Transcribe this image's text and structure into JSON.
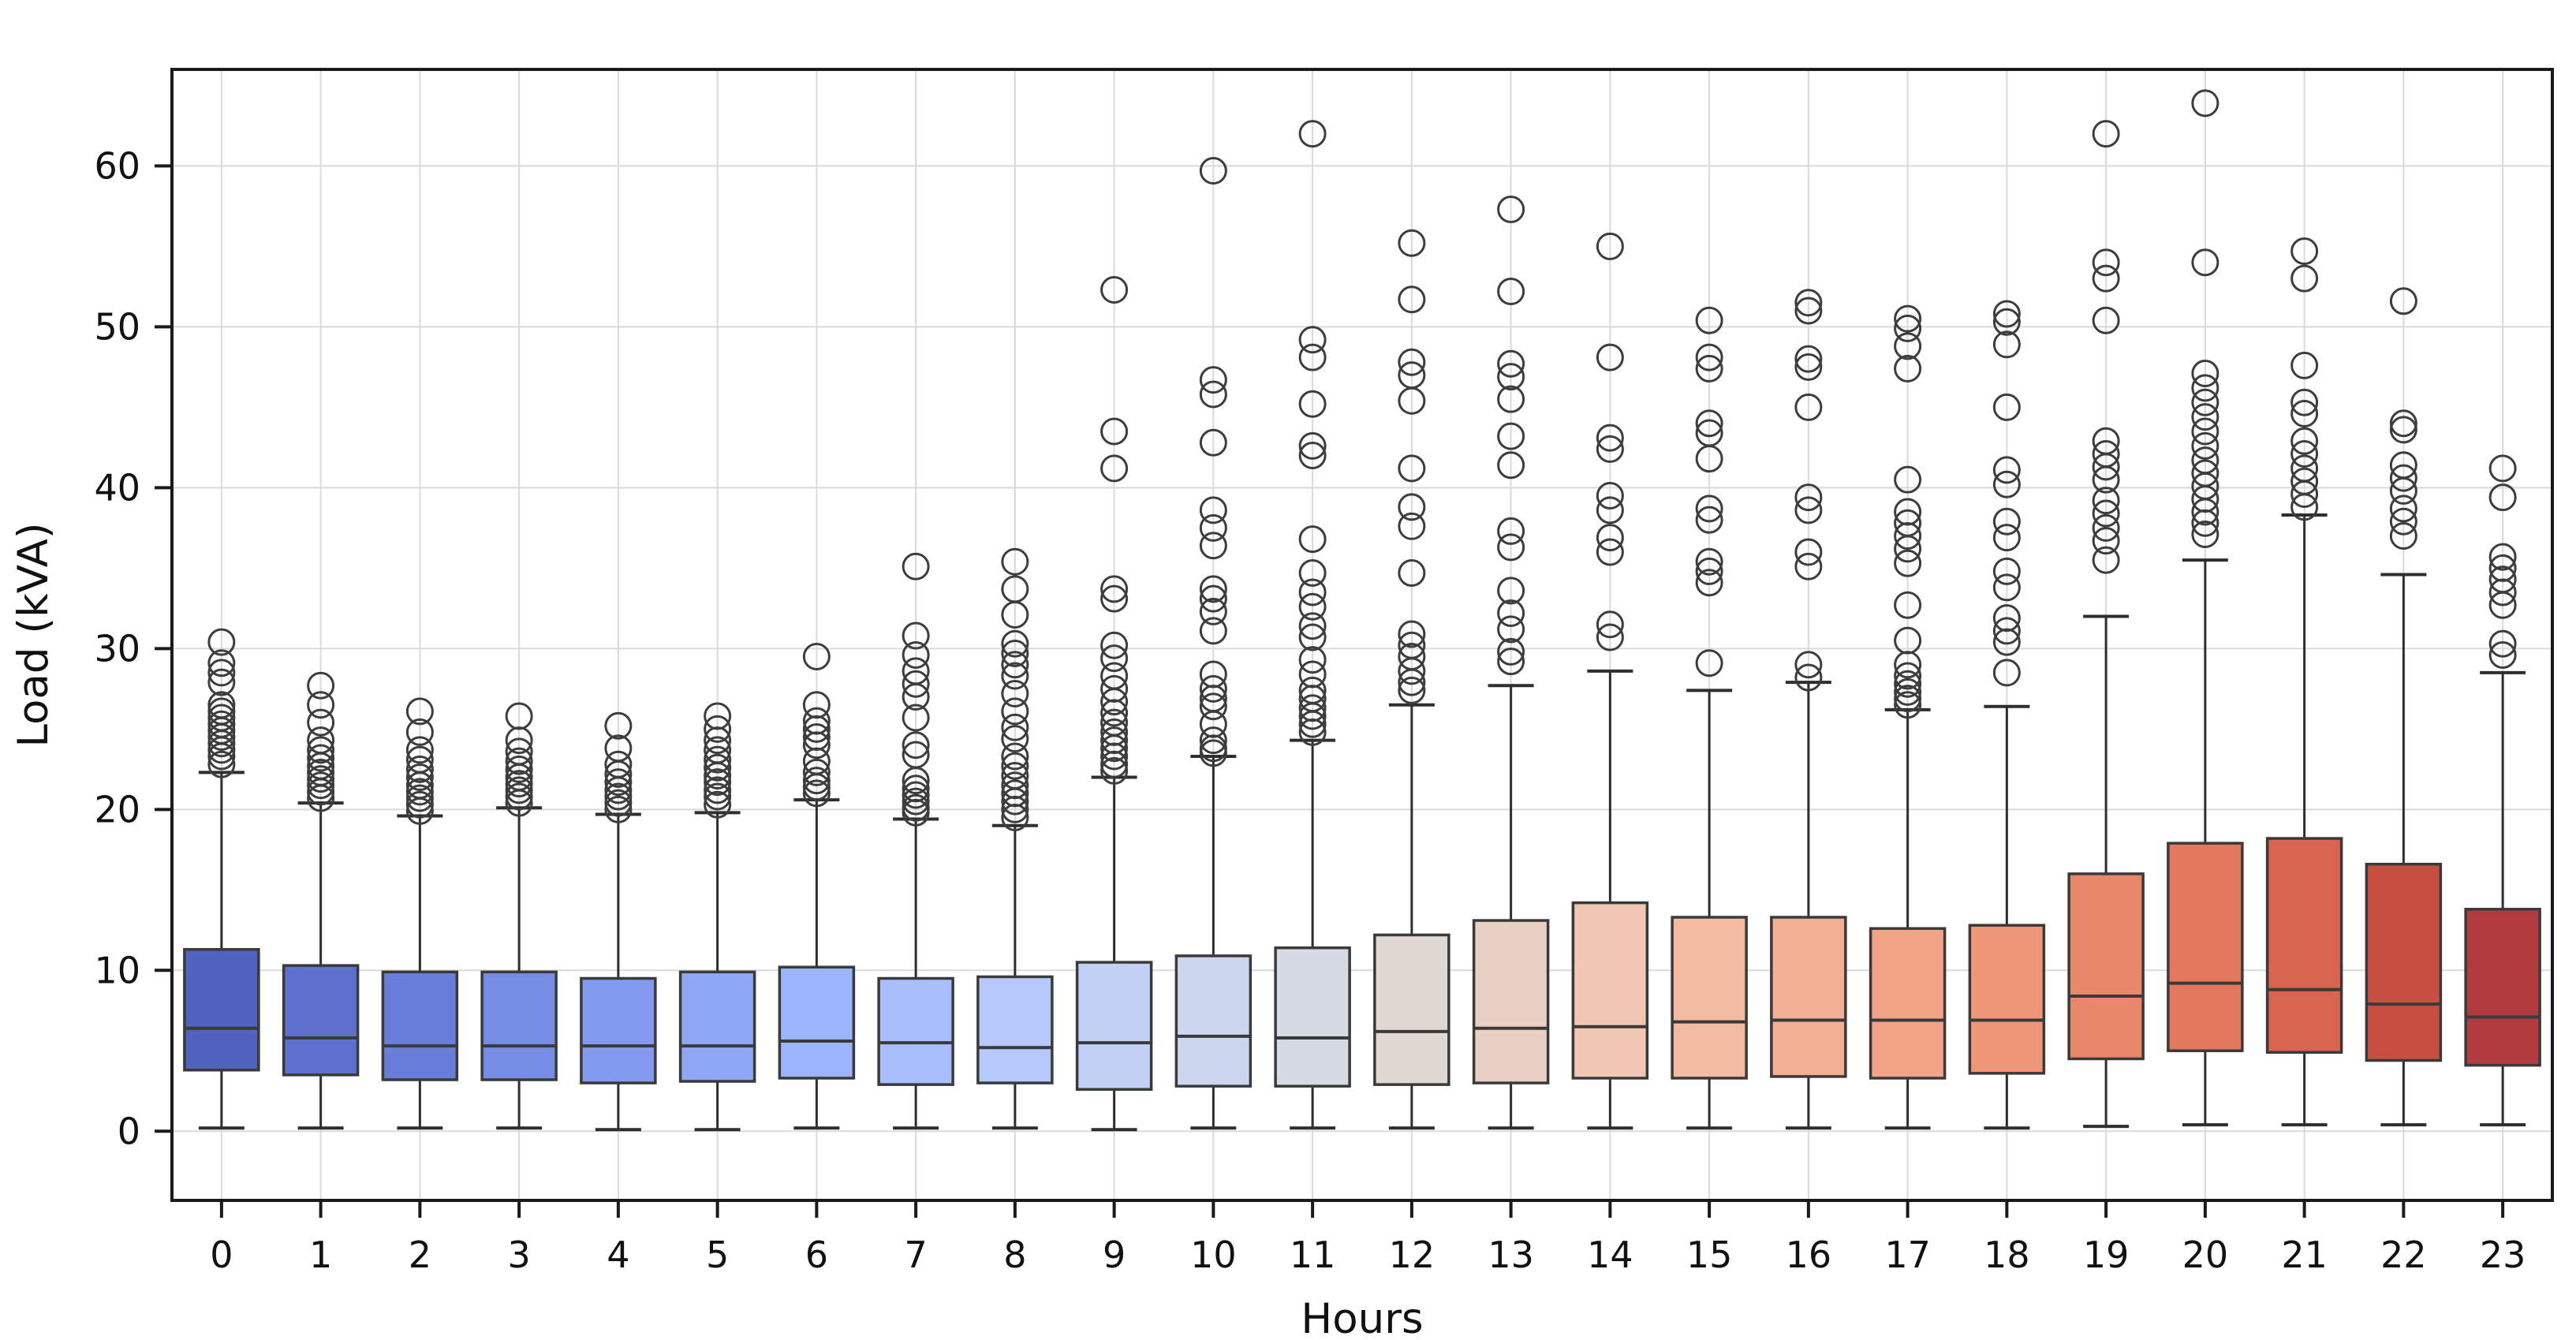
{
  "figure": {
    "background": "#ffffff",
    "plot_border_color": "#1a1a1a",
    "grid_color": "#dadada",
    "box_edge_color": "#3a3a3a",
    "whisker_color": "#2e2e2e",
    "flier_edge_color": "#3d3d3d"
  },
  "chart_data": {
    "type": "box",
    "title": "",
    "xlabel": "Hours",
    "ylabel": "Load (kVA)",
    "categories": [
      "0",
      "1",
      "2",
      "3",
      "4",
      "5",
      "6",
      "7",
      "8",
      "9",
      "10",
      "11",
      "12",
      "13",
      "14",
      "15",
      "16",
      "17",
      "18",
      "19",
      "20",
      "21",
      "22",
      "23"
    ],
    "yticks": [
      0,
      10,
      20,
      30,
      40,
      50,
      60
    ],
    "ylim": [
      -4.3,
      66
    ],
    "grid": true,
    "legend": false,
    "flier_style": {
      "shape": "circle",
      "fill": "none",
      "edge": "#3d3d3d"
    },
    "series": [
      {
        "hour": "0",
        "color": "#5061BE",
        "whisker_low": 0.2,
        "q1": 3.8,
        "median": 6.4,
        "q3": 11.3,
        "whisker_high": 22.3,
        "outliers": [
          22.8,
          23.3,
          23.7,
          24.1,
          24.5,
          24.9,
          25.3,
          25.7,
          26.1,
          26.5,
          27.9,
          28.5,
          29.1,
          30.4
        ]
      },
      {
        "hour": "1",
        "color": "#5C70CC",
        "whisker_low": 0.2,
        "q1": 3.5,
        "median": 5.8,
        "q3": 10.3,
        "whisker_high": 20.4,
        "outliers": [
          20.7,
          21.1,
          21.5,
          21.9,
          22.3,
          22.7,
          23.2,
          23.7,
          24.3,
          25.4,
          26.5,
          27.7
        ]
      },
      {
        "hour": "2",
        "color": "#687ED9",
        "whisker_low": 0.2,
        "q1": 3.2,
        "median": 5.3,
        "q3": 9.9,
        "whisker_high": 19.6,
        "outliers": [
          19.9,
          20.3,
          20.7,
          21.1,
          21.5,
          22.0,
          22.5,
          23.1,
          23.7,
          24.8,
          26.1
        ]
      },
      {
        "hour": "3",
        "color": "#758DE5",
        "whisker_low": 0.2,
        "q1": 3.2,
        "median": 5.3,
        "q3": 9.9,
        "whisker_high": 20.1,
        "outliers": [
          20.4,
          20.8,
          21.2,
          21.6,
          22.0,
          22.5,
          23.0,
          23.6,
          24.3,
          25.8
        ]
      },
      {
        "hour": "4",
        "color": "#829BEF",
        "whisker_low": 0.1,
        "q1": 3.0,
        "median": 5.3,
        "q3": 9.5,
        "whisker_high": 19.7,
        "outliers": [
          20.0,
          20.4,
          20.8,
          21.2,
          21.7,
          22.2,
          22.8,
          23.8,
          25.2
        ]
      },
      {
        "hour": "5",
        "color": "#8FA8F6",
        "whisker_low": 0.1,
        "q1": 3.1,
        "median": 5.3,
        "q3": 9.9,
        "whisker_high": 19.8,
        "outliers": [
          20.3,
          20.8,
          21.2,
          21.7,
          22.1,
          22.6,
          23.1,
          23.7,
          24.3,
          25.0,
          25.8
        ]
      },
      {
        "hour": "6",
        "color": "#9CB4FB",
        "whisker_low": 0.2,
        "q1": 3.3,
        "median": 5.6,
        "q3": 10.2,
        "whisker_high": 20.6,
        "outliers": [
          21.0,
          21.4,
          21.8,
          22.3,
          23.0,
          24.0,
          24.5,
          25.0,
          25.5,
          26.5,
          29.5
        ]
      },
      {
        "hour": "7",
        "color": "#A9BFFD",
        "whisker_low": 0.2,
        "q1": 2.9,
        "median": 5.5,
        "q3": 9.5,
        "whisker_high": 19.4,
        "outliers": [
          19.8,
          20.1,
          20.5,
          20.9,
          21.3,
          21.8,
          23.4,
          24.0,
          25.7,
          27.0,
          27.8,
          28.6,
          29.6,
          30.8,
          35.1
        ]
      },
      {
        "hour": "8",
        "color": "#B5C9FB",
        "whisker_low": 0.2,
        "q1": 3.0,
        "median": 5.2,
        "q3": 9.6,
        "whisker_high": 19.0,
        "outliers": [
          19.5,
          20.0,
          20.5,
          21.0,
          21.5,
          22.1,
          22.7,
          23.3,
          24.4,
          25.1,
          26.1,
          27.2,
          28.3,
          29.0,
          29.7,
          30.3,
          32.1,
          33.7,
          35.4
        ]
      },
      {
        "hour": "9",
        "color": "#C1D1F6",
        "whisker_low": 0.1,
        "q1": 2.6,
        "median": 5.5,
        "q3": 10.5,
        "whisker_high": 22.0,
        "outliers": [
          22.4,
          22.8,
          23.3,
          23.8,
          24.3,
          24.8,
          25.4,
          26.0,
          26.7,
          27.5,
          28.3,
          29.4,
          30.2,
          33.1,
          33.7,
          41.2,
          43.5,
          52.3
        ]
      },
      {
        "hour": "10",
        "color": "#CCD7EE",
        "whisker_low": 0.2,
        "q1": 2.8,
        "median": 5.9,
        "q3": 10.9,
        "whisker_high": 23.3,
        "outliers": [
          23.5,
          23.8,
          24.3,
          25.3,
          26.4,
          26.9,
          27.5,
          28.4,
          31.1,
          32.3,
          33.1,
          33.7,
          36.4,
          37.5,
          38.6,
          42.8,
          45.8,
          46.7,
          59.7
        ]
      },
      {
        "hour": "11",
        "color": "#D6DAE4",
        "whisker_low": 0.2,
        "q1": 2.8,
        "median": 5.8,
        "q3": 11.4,
        "whisker_high": 24.3,
        "outliers": [
          24.8,
          25.3,
          25.8,
          26.3,
          26.9,
          27.4,
          28.4,
          29.3,
          30.7,
          31.4,
          32.6,
          33.5,
          34.7,
          36.8,
          42.0,
          42.6,
          45.2,
          48.1,
          49.2,
          62.0
        ]
      },
      {
        "hour": "12",
        "color": "#E1D8D1",
        "whisker_low": 0.2,
        "q1": 2.9,
        "median": 6.2,
        "q3": 12.2,
        "whisker_high": 26.5,
        "outliers": [
          27.4,
          27.9,
          28.6,
          29.5,
          30.2,
          30.9,
          34.7,
          37.6,
          38.8,
          41.2,
          45.4,
          47.0,
          47.8,
          51.7,
          55.2
        ]
      },
      {
        "hour": "13",
        "color": "#E9D0C2",
        "whisker_low": 0.2,
        "q1": 3.0,
        "median": 6.4,
        "q3": 13.1,
        "whisker_high": 27.7,
        "outliers": [
          29.2,
          29.8,
          31.2,
          32.2,
          33.6,
          36.3,
          37.3,
          41.4,
          43.2,
          45.5,
          46.9,
          47.7,
          52.2,
          57.3
        ]
      },
      {
        "hour": "14",
        "color": "#EFC7B2",
        "whisker_low": 0.2,
        "q1": 3.3,
        "median": 6.5,
        "q3": 14.2,
        "whisker_high": 28.6,
        "outliers": [
          30.7,
          31.5,
          36.0,
          36.9,
          38.6,
          39.5,
          42.4,
          43.1,
          48.1,
          55.0
        ]
      },
      {
        "hour": "15",
        "color": "#F2BBA2",
        "whisker_low": 0.2,
        "q1": 3.3,
        "median": 6.8,
        "q3": 13.3,
        "whisker_high": 27.4,
        "outliers": [
          29.1,
          34.1,
          34.8,
          35.4,
          38.0,
          38.7,
          41.8,
          43.4,
          44.0,
          47.4,
          48.1,
          50.4
        ]
      },
      {
        "hour": "16",
        "color": "#F3AF93",
        "whisker_low": 0.2,
        "q1": 3.4,
        "median": 6.9,
        "q3": 13.3,
        "whisker_high": 27.9,
        "outliers": [
          28.2,
          29.0,
          35.1,
          36.0,
          38.6,
          39.4,
          45.0,
          47.5,
          48.0,
          51.0,
          51.5
        ]
      },
      {
        "hour": "17",
        "color": "#F2A385",
        "whisker_low": 0.2,
        "q1": 3.3,
        "median": 6.9,
        "q3": 12.6,
        "whisker_high": 26.2,
        "outliers": [
          26.5,
          26.9,
          27.3,
          27.8,
          28.3,
          29.0,
          30.5,
          32.7,
          35.3,
          36.2,
          37.0,
          37.8,
          38.5,
          40.5,
          47.4,
          48.8,
          49.9,
          50.5
        ]
      },
      {
        "hour": "18",
        "color": "#EF9678",
        "whisker_low": 0.2,
        "q1": 3.6,
        "median": 6.9,
        "q3": 12.8,
        "whisker_high": 26.4,
        "outliers": [
          28.5,
          30.4,
          31.1,
          31.9,
          33.8,
          34.8,
          36.9,
          37.9,
          40.2,
          41.1,
          45.0,
          48.9,
          50.3,
          50.8
        ]
      },
      {
        "hour": "19",
        "color": "#E9876A",
        "whisker_low": 0.3,
        "q1": 4.5,
        "median": 8.4,
        "q3": 16.0,
        "whisker_high": 32.0,
        "outliers": [
          35.5,
          36.7,
          37.5,
          38.4,
          39.2,
          40.5,
          41.3,
          42.1,
          42.9,
          50.4,
          53.0,
          54.0,
          62.0
        ]
      },
      {
        "hour": "20",
        "color": "#E2775D",
        "whisker_low": 0.4,
        "q1": 5.0,
        "median": 9.2,
        "q3": 17.9,
        "whisker_high": 35.5,
        "outliers": [
          37.1,
          37.8,
          38.5,
          39.3,
          40.1,
          40.9,
          41.7,
          42.6,
          43.5,
          44.4,
          45.3,
          46.2,
          47.1,
          54.0,
          63.9
        ]
      },
      {
        "hour": "21",
        "color": "#D76550",
        "whisker_low": 0.4,
        "q1": 4.9,
        "median": 8.8,
        "q3": 18.2,
        "whisker_high": 38.3,
        "outliers": [
          38.8,
          39.6,
          40.4,
          41.2,
          42.1,
          42.9,
          44.6,
          45.3,
          47.6,
          53.0,
          54.7
        ]
      },
      {
        "hour": "22",
        "color": "#C84E42",
        "whisker_low": 0.4,
        "q1": 4.4,
        "median": 7.9,
        "q3": 16.6,
        "whisker_high": 34.6,
        "outliers": [
          37.0,
          37.9,
          38.7,
          39.8,
          40.6,
          41.4,
          43.6,
          44.0,
          51.6
        ]
      },
      {
        "hour": "23",
        "color": "#B23B3F",
        "whisker_low": 0.4,
        "q1": 4.1,
        "median": 7.1,
        "q3": 13.8,
        "whisker_high": 28.5,
        "outliers": [
          29.6,
          30.3,
          32.7,
          33.5,
          34.3,
          35.0,
          35.7,
          39.4,
          41.2
        ]
      }
    ]
  }
}
